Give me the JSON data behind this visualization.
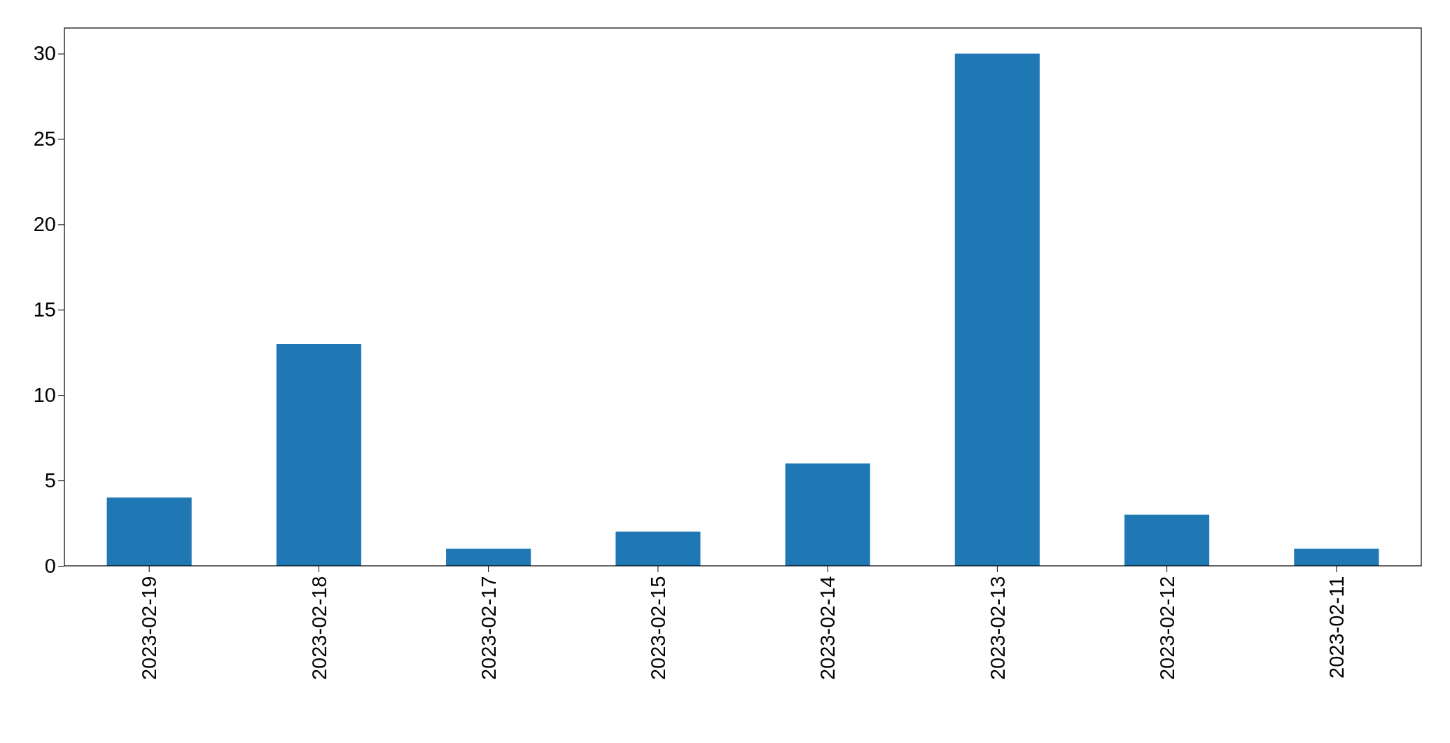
{
  "chart_data": {
    "type": "bar",
    "categories": [
      "2023-02-19",
      "2023-02-18",
      "2023-02-17",
      "2023-02-15",
      "2023-02-14",
      "2023-02-13",
      "2023-02-12",
      "2023-02-11"
    ],
    "values": [
      4,
      13,
      1,
      2,
      6,
      30,
      3,
      1
    ],
    "color": "#1f77b4",
    "ylim": [
      0,
      31.5
    ],
    "yticks": [
      0,
      5,
      10,
      15,
      20,
      25,
      30
    ],
    "grid": false
  }
}
